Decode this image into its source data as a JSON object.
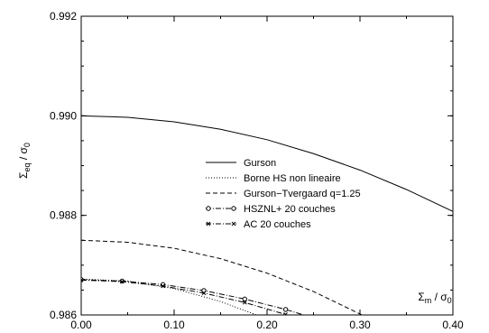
{
  "chart_data": {
    "type": "line",
    "xlabel": {
      "main": "Σ",
      "sub": "m",
      "rest": " / σ",
      "sub2": "0"
    },
    "ylabel": {
      "main": "Σ",
      "sub": "eq",
      "rest": " / σ",
      "sub2": "0"
    },
    "xlim": [
      0.0,
      0.4
    ],
    "ylim": [
      0.986,
      0.992
    ],
    "xticks": [
      0.0,
      0.1,
      0.2,
      0.3,
      0.4
    ],
    "xtick_labels": [
      "0.00",
      "0.10",
      "0.20",
      "0.30",
      "0.40"
    ],
    "yticks": [
      0.986,
      0.988,
      0.99,
      0.992
    ],
    "ytick_labels": [
      "0.986",
      "0.988",
      "0.990",
      "0.992"
    ],
    "grid": false,
    "legend_position": "center",
    "series": [
      {
        "name": "Gurson",
        "style": "solid",
        "marker": "none",
        "x": [
          0.0,
          0.05,
          0.1,
          0.15,
          0.2,
          0.25,
          0.3,
          0.35,
          0.4
        ],
        "y": [
          0.99,
          0.98997,
          0.98988,
          0.98973,
          0.98952,
          0.98924,
          0.98891,
          0.98852,
          0.98808
        ]
      },
      {
        "name": "Borne HS non lineaire",
        "style": "dotted",
        "marker": "none",
        "x": [
          0.0,
          0.05,
          0.1,
          0.15,
          0.2,
          0.25,
          0.26
        ],
        "y": [
          0.98672,
          0.98668,
          0.98653,
          0.98627,
          0.98592,
          0.98548,
          0.98537
        ]
      },
      {
        "name": "Gurson−Tvergaard q=1.25",
        "style": "dashed",
        "marker": "none",
        "x": [
          0.0,
          0.05,
          0.1,
          0.15,
          0.2,
          0.25,
          0.3,
          0.325
        ],
        "y": [
          0.9875,
          0.98746,
          0.98734,
          0.98713,
          0.98684,
          0.98647,
          0.98602,
          0.98577
        ]
      },
      {
        "name": "HSZNL+ 20 couches",
        "style": "dashdot",
        "marker": "circle",
        "x": [
          0.0,
          0.044,
          0.088,
          0.132,
          0.176,
          0.22,
          0.25
        ],
        "y": [
          0.98671,
          0.98668,
          0.98661,
          0.98649,
          0.98632,
          0.98611,
          0.98594
        ]
      },
      {
        "name": "AC 20 couches",
        "style": "dashdot",
        "marker": "x",
        "x": [
          0.0,
          0.044,
          0.088,
          0.132,
          0.176,
          0.22,
          0.25
        ],
        "y": [
          0.9867,
          0.98667,
          0.98658,
          0.98644,
          0.98625,
          0.98601,
          0.98583
        ]
      }
    ]
  }
}
